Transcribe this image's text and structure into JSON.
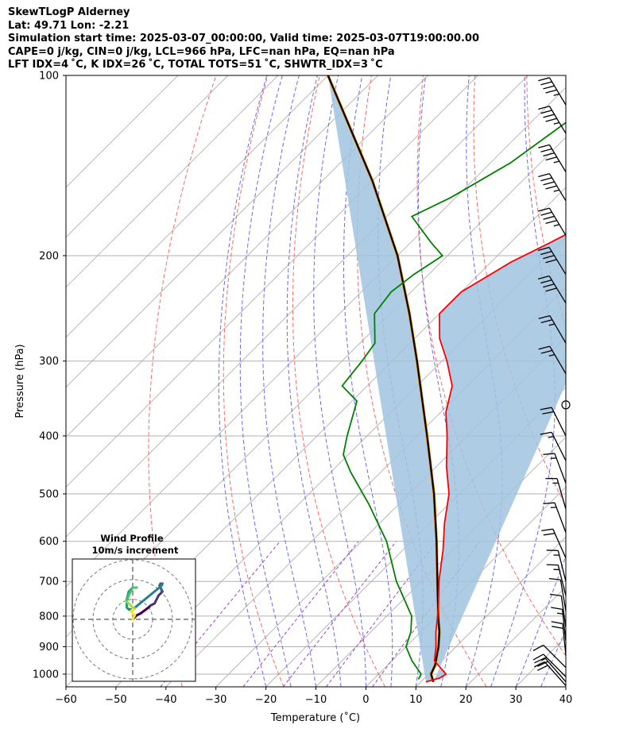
{
  "header": {
    "line1": "SkewTLogP Alderney",
    "line2": "Lat: 49.71   Lon: -2.21",
    "line3": "Simulation start time: 2025-03-07_00:00:00, Valid time: 2025-03-07T19:00:00.00",
    "line4": "CAPE=0 j/kg, CIN=0 j/kg, LCL=966 hPa, LFC=nan hPa, EQ=nan hPa",
    "line5": "LFT IDX=4 ˚C, K IDX=26 ˚C, TOTAL TOTS=51 ˚C, SHWTR_IDX=3 ˚C"
  },
  "colors": {
    "temperature": "#ff0000",
    "dewpoint": "#008000",
    "parcel": "#000000",
    "cape_fill": "#a0c4e0",
    "dry_adiabat": "#ff6666",
    "moist_adiabat": "#6a6af0",
    "mixing_ratio": "#a040c0",
    "isotherm": "#b0b0b0"
  },
  "chart_data": [
    {
      "type": "line",
      "subtype": "skew-t log-p",
      "title": "",
      "xlabel": "Temperature (˚C)",
      "ylabel": "Pressure (hPa)",
      "xlim": [
        -60,
        40
      ],
      "ylim": [
        1050,
        100
      ],
      "y_scale": "log",
      "x_ticks": [
        "−60",
        "−50",
        "−40",
        "−30",
        "−20",
        "−10",
        "0",
        "10",
        "20",
        "30",
        "40"
      ],
      "y_ticks": [
        "100",
        "200",
        "300",
        "400",
        "500",
        "600",
        "700",
        "800",
        "900",
        "1000"
      ],
      "grid": true,
      "series": [
        {
          "key": "temperature",
          "points": [
            [
              100,
              -55
            ],
            [
              115,
              -51
            ],
            [
              130,
              -48
            ],
            [
              145,
              -47
            ],
            [
              160,
              -46
            ],
            [
              175,
              -48
            ],
            [
              190,
              -52
            ],
            [
              205,
              -56
            ],
            [
              230,
              -60
            ],
            [
              250,
              -60
            ],
            [
              275,
              -55
            ],
            [
              300,
              -49
            ],
            [
              330,
              -43
            ],
            [
              365,
              -39
            ],
            [
              400,
              -34
            ],
            [
              450,
              -28
            ],
            [
              500,
              -22
            ],
            [
              560,
              -17
            ],
            [
              620,
              -12
            ],
            [
              700,
              -6.5
            ],
            [
              780,
              -1
            ],
            [
              850,
              3
            ],
            [
              900,
              6
            ],
            [
              950,
              8.5
            ],
            [
              980,
              11.5
            ],
            [
              1000,
              13.5
            ],
            [
              1015,
              13
            ],
            [
              1030,
              11
            ]
          ]
        },
        {
          "key": "dewpoint",
          "points": [
            [
              100,
              -70
            ],
            [
              120,
              -73
            ],
            [
              140,
              -76
            ],
            [
              160,
              -81
            ],
            [
              172,
              -85
            ],
            [
              190,
              -76
            ],
            [
              200,
              -71
            ],
            [
              215,
              -73
            ],
            [
              230,
              -74
            ],
            [
              250,
              -73
            ],
            [
              280,
              -67
            ],
            [
              300,
              -66
            ],
            [
              330,
              -65
            ],
            [
              350,
              -59
            ],
            [
              400,
              -54
            ],
            [
              430,
              -51
            ],
            [
              460,
              -46
            ],
            [
              520,
              -36
            ],
            [
              600,
              -25
            ],
            [
              700,
              -15
            ],
            [
              800,
              -5
            ],
            [
              850,
              -2
            ],
            [
              900,
              0
            ],
            [
              950,
              4
            ],
            [
              1000,
              8.5
            ],
            [
              1020,
              9
            ]
          ]
        },
        {
          "key": "parcel",
          "points": [
            [
              1030,
              12.5
            ],
            [
              1000,
              10.5
            ],
            [
              966,
              9.5
            ],
            [
              900,
              6.5
            ],
            [
              850,
              3.7
            ],
            [
              800,
              0.3
            ],
            [
              700,
              -6.8
            ],
            [
              600,
              -15
            ],
            [
              500,
              -25
            ],
            [
              400,
              -38
            ],
            [
              300,
              -55
            ],
            [
              250,
              -66
            ],
            [
              200,
              -80
            ],
            [
              150,
              -100
            ],
            [
              100,
              -130
            ]
          ]
        }
      ]
    },
    {
      "type": "line",
      "subtype": "hodograph",
      "title": "Wind Profile",
      "subtitle": "10m/s increment",
      "rings_mps": [
        10,
        20,
        30
      ],
      "points": [
        [
          0,
          0
        ],
        [
          1,
          1
        ],
        [
          2,
          2
        ],
        [
          4,
          3
        ],
        [
          6,
          4.5
        ],
        [
          8,
          6
        ],
        [
          9,
          7
        ],
        [
          11,
          8
        ],
        [
          12,
          10
        ],
        [
          13,
          12
        ],
        [
          14,
          13
        ],
        [
          15,
          14
        ],
        [
          14.5,
          15
        ],
        [
          14,
          16
        ],
        [
          13.5,
          17
        ],
        [
          14,
          18
        ],
        [
          15,
          18
        ],
        [
          14.5,
          17
        ],
        [
          14,
          16.5
        ],
        [
          0,
          5
        ],
        [
          -2,
          5
        ],
        [
          -3,
          6
        ],
        [
          -3,
          10
        ],
        [
          -2,
          14
        ],
        [
          -1,
          15
        ],
        [
          0,
          16
        ],
        [
          1,
          16
        ],
        [
          2,
          16
        ],
        [
          0,
          16
        ],
        [
          -1,
          14
        ],
        [
          -2,
          12
        ],
        [
          -3,
          9
        ],
        [
          -2,
          8
        ],
        [
          -1,
          7
        ],
        [
          0,
          6
        ],
        [
          1,
          5.5
        ],
        [
          0,
          5
        ],
        [
          -1,
          4
        ],
        [
          0,
          3
        ],
        [
          1,
          2
        ],
        [
          0.5,
          1
        ],
        [
          0,
          0
        ]
      ]
    }
  ],
  "wind_barbs": [
    {
      "p": 1045,
      "u": -8,
      "v": 9
    },
    {
      "p": 1030,
      "u": -7,
      "v": 8
    },
    {
      "p": 1010,
      "u": -6,
      "v": 6
    },
    {
      "p": 975,
      "u": -5,
      "v": 5
    },
    {
      "p": 930,
      "u": -1,
      "v": 10
    },
    {
      "p": 880,
      "u": -1,
      "v": 9
    },
    {
      "p": 835,
      "u": -1,
      "v": 7
    },
    {
      "p": 785,
      "u": -1,
      "v": 6
    },
    {
      "p": 740,
      "u": -2,
      "v": 8
    },
    {
      "p": 700,
      "u": -2,
      "v": 8
    },
    {
      "p": 640,
      "u": -4,
      "v": 9
    },
    {
      "p": 580,
      "u": -3,
      "v": 8
    },
    {
      "p": 530,
      "u": -2,
      "v": 7
    },
    {
      "p": 480,
      "u": -3,
      "v": 8
    },
    {
      "p": 440,
      "u": -4,
      "v": 8
    },
    {
      "p": 400,
      "u": -5,
      "v": 10
    },
    {
      "p": 355,
      "u": 0,
      "v": 0
    },
    {
      "p": 315,
      "u": -7,
      "v": 12
    },
    {
      "p": 280,
      "u": -7,
      "v": 12
    },
    {
      "p": 240,
      "u": -11,
      "v": 18
    },
    {
      "p": 215,
      "u": -11,
      "v": 18
    },
    {
      "p": 185,
      "u": -12,
      "v": 20
    },
    {
      "p": 162,
      "u": -12,
      "v": 20
    },
    {
      "p": 145,
      "u": -12,
      "v": 20
    },
    {
      "p": 125,
      "u": -12,
      "v": 20
    },
    {
      "p": 112,
      "u": -12,
      "v": 20
    }
  ]
}
